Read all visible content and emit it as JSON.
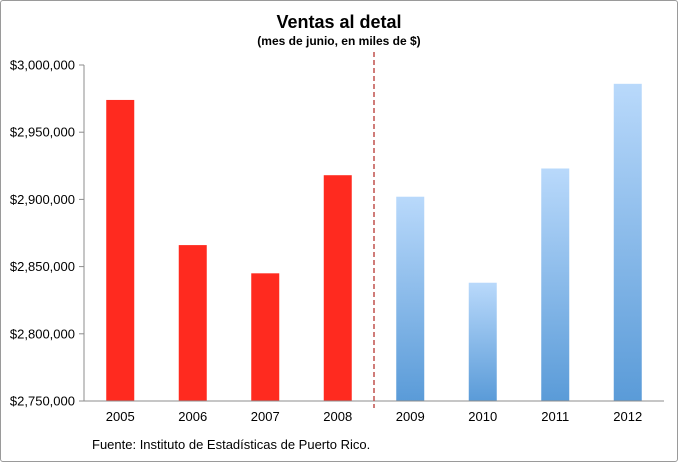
{
  "chart_data": {
    "type": "bar",
    "title": "Ventas al detal",
    "subtitle": "(mes de junio, en miles de $)",
    "source": "Fuente: Instituto de Estadísticas de Puerto Rico.",
    "xlabel": "",
    "ylabel": "",
    "categories": [
      "2005",
      "2006",
      "2007",
      "2008",
      "2009",
      "2010",
      "2011",
      "2012"
    ],
    "values": [
      2974000,
      2866000,
      2845000,
      2918000,
      2902000,
      2838000,
      2923000,
      2986000
    ],
    "ylim": [
      2750000,
      3000000
    ],
    "y_ticks": [
      2750000,
      2800000,
      2850000,
      2900000,
      2950000,
      3000000
    ],
    "y_tick_labels": [
      "$2,750,000",
      "$2,800,000",
      "$2,850,000",
      "$2,900,000",
      "$2,950,000",
      "$3,000,000"
    ],
    "grid": false,
    "legend": "none",
    "divider_after_category": "2008",
    "colors": {
      "before_divider": "#ff2a1f",
      "after_divider_top": "#b9d9fb",
      "after_divider_bottom": "#5a9bd8",
      "divider": "#c0504d",
      "axis": "#8c8c8c"
    }
  }
}
